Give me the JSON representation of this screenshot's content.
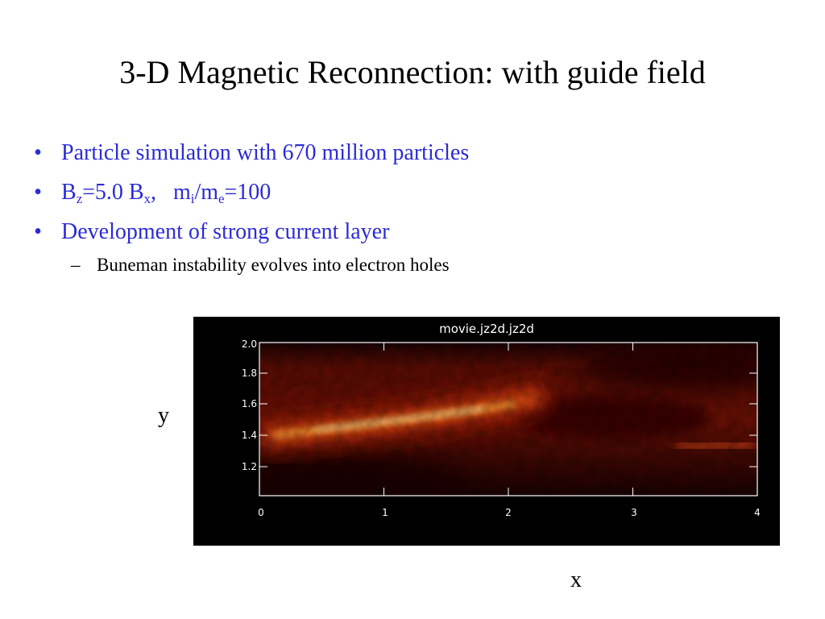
{
  "slide": {
    "title": "3-D Magnetic Reconnection: with guide field",
    "bullets": [
      {
        "text": "Particle simulation with 670 million particles"
      },
      {
        "parts": [
          "B",
          "z",
          "=5.0 B",
          "x",
          ",   m",
          "i",
          "/m",
          "e",
          "=100"
        ]
      },
      {
        "text": "Development of strong current layer"
      }
    ],
    "sub_bullets": [
      {
        "text": "Buneman instability evolves into electron holes"
      }
    ],
    "bullet_glyph": "•",
    "dash_glyph": "–",
    "axis_label_y": "y",
    "axis_label_x": "x"
  },
  "figure": {
    "plot_title": "movie.jz2d.jz2d",
    "x_ticks": [
      "0",
      "1",
      "2",
      "3",
      "4"
    ],
    "y_ticks": [
      "1.2",
      "1.4",
      "1.6",
      "1.8",
      "2.0"
    ],
    "colors": {
      "background": "#000000",
      "low": "#2a0202",
      "mid": "#8c1a05",
      "high": "#ff9a30",
      "peak": "#fff2c0",
      "text": "#ffffff",
      "bullet_blue": "#2b2bd9"
    }
  }
}
